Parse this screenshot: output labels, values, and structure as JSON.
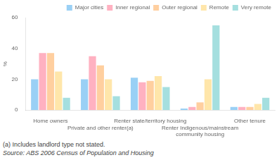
{
  "chart_data": {
    "type": "bar",
    "categories": [
      "Home owners",
      "Private and other renter(a)",
      "Renter state/territory housing",
      "Renter Indigenous/mainstream\ncommunity housing",
      "Other tenure"
    ],
    "series": [
      {
        "name": "Major cities",
        "values": [
          20,
          20,
          21,
          1,
          2
        ]
      },
      {
        "name": "Inner regional",
        "values": [
          37,
          35,
          18,
          2,
          2
        ]
      },
      {
        "name": "Outer regional",
        "values": [
          37,
          29,
          19,
          5,
          2
        ]
      },
      {
        "name": "Remote",
        "values": [
          25,
          20,
          22,
          20,
          4
        ]
      },
      {
        "name": "Very remote",
        "values": [
          8,
          9,
          15,
          55,
          8
        ]
      }
    ],
    "ylabel": "%",
    "ylim": [
      0,
      60
    ],
    "yticks": [
      0,
      20,
      40,
      60
    ],
    "grid": false,
    "legend": "upper right",
    "annotations": [
      "(a) Includes landlord type not stated.",
      "Source: ABS 2006 Census of Population and Housing"
    ]
  }
}
